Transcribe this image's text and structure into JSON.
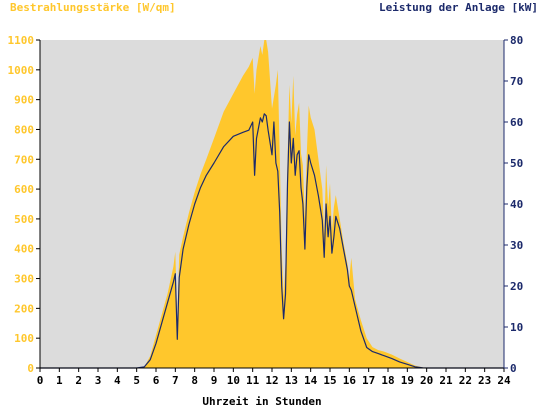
{
  "colors": {
    "plot_background": "#dcdcdc",
    "irradiance_fill": "#ffc72c",
    "power_line": "#1c2a6b",
    "left_axis_text": "#ffc72c",
    "right_axis_text": "#1c2a6b"
  },
  "chart_data": {
    "type": "area",
    "left_axis_title": "Bestrahlungsstärke [W/qm]",
    "right_axis_title": "Leistung der Anlage [kW]",
    "xlabel": "Uhrzeit in Stunden",
    "xlim": [
      0,
      24
    ],
    "ylim_left": [
      0,
      1100
    ],
    "ylim_right": [
      0,
      80
    ],
    "x_ticks": [
      "0",
      "1",
      "2",
      "3",
      "4",
      "5",
      "6",
      "7",
      "8",
      "9",
      "10",
      "11",
      "12",
      "13",
      "14",
      "15",
      "16",
      "17",
      "18",
      "19",
      "20",
      "21",
      "22",
      "23",
      "24"
    ],
    "y_ticks_left": [
      "0",
      "100",
      "200",
      "300",
      "400",
      "500",
      "600",
      "700",
      "800",
      "900",
      "1000",
      "1100"
    ],
    "y_ticks_right": [
      "0",
      "10",
      "20",
      "30",
      "40",
      "50",
      "60",
      "70",
      "80"
    ],
    "grid": false,
    "series": [
      {
        "name": "Bestrahlungsstärke",
        "axis": "left",
        "style": "area",
        "points": [
          [
            0,
            0
          ],
          [
            5.0,
            0
          ],
          [
            5.4,
            5
          ],
          [
            5.7,
            40
          ],
          [
            6.0,
            110
          ],
          [
            6.3,
            180
          ],
          [
            6.6,
            250
          ],
          [
            6.9,
            340
          ],
          [
            7.0,
            390
          ],
          [
            7.1,
            150
          ],
          [
            7.2,
            380
          ],
          [
            7.4,
            440
          ],
          [
            7.7,
            520
          ],
          [
            8.0,
            590
          ],
          [
            8.3,
            650
          ],
          [
            8.6,
            700
          ],
          [
            9.0,
            770
          ],
          [
            9.5,
            860
          ],
          [
            10.0,
            920
          ],
          [
            10.5,
            980
          ],
          [
            10.8,
            1010
          ],
          [
            11.0,
            1040
          ],
          [
            11.1,
            920
          ],
          [
            11.2,
            1000
          ],
          [
            11.4,
            1080
          ],
          [
            11.5,
            1050
          ],
          [
            11.6,
            1100
          ],
          [
            11.7,
            1100
          ],
          [
            11.8,
            1060
          ],
          [
            12.0,
            870
          ],
          [
            12.2,
            950
          ],
          [
            12.3,
            1000
          ],
          [
            12.4,
            720
          ],
          [
            12.5,
            400
          ],
          [
            12.6,
            240
          ],
          [
            12.7,
            350
          ],
          [
            12.8,
            700
          ],
          [
            12.9,
            950
          ],
          [
            13.0,
            820
          ],
          [
            13.1,
            980
          ],
          [
            13.2,
            780
          ],
          [
            13.3,
            850
          ],
          [
            13.4,
            890
          ],
          [
            13.5,
            720
          ],
          [
            13.6,
            680
          ],
          [
            13.7,
            500
          ],
          [
            13.8,
            720
          ],
          [
            13.9,
            880
          ],
          [
            14.0,
            840
          ],
          [
            14.2,
            800
          ],
          [
            14.4,
            700
          ],
          [
            14.6,
            600
          ],
          [
            14.7,
            450
          ],
          [
            14.8,
            680
          ],
          [
            14.9,
            540
          ],
          [
            15.0,
            620
          ],
          [
            15.1,
            460
          ],
          [
            15.2,
            540
          ],
          [
            15.3,
            580
          ],
          [
            15.5,
            500
          ],
          [
            15.7,
            420
          ],
          [
            15.9,
            350
          ],
          [
            16.0,
            300
          ],
          [
            16.1,
            370
          ],
          [
            16.3,
            230
          ],
          [
            16.6,
            160
          ],
          [
            16.9,
            100
          ],
          [
            17.2,
            70
          ],
          [
            17.5,
            60
          ],
          [
            17.8,
            55
          ],
          [
            18.2,
            45
          ],
          [
            18.6,
            32
          ],
          [
            19.0,
            20
          ],
          [
            19.4,
            8
          ],
          [
            19.8,
            2
          ],
          [
            20.0,
            0
          ],
          [
            24,
            0
          ]
        ]
      },
      {
        "name": "Leistung der Anlage",
        "axis": "right",
        "style": "line",
        "points": [
          [
            0,
            0
          ],
          [
            5.0,
            0
          ],
          [
            5.4,
            0.3
          ],
          [
            5.7,
            2
          ],
          [
            6.0,
            6
          ],
          [
            6.3,
            11
          ],
          [
            6.6,
            16
          ],
          [
            6.9,
            21
          ],
          [
            7.0,
            23
          ],
          [
            7.1,
            7
          ],
          [
            7.2,
            22
          ],
          [
            7.4,
            29
          ],
          [
            7.7,
            35
          ],
          [
            8.0,
            40
          ],
          [
            8.3,
            44
          ],
          [
            8.6,
            47
          ],
          [
            9.0,
            50
          ],
          [
            9.5,
            54
          ],
          [
            10.0,
            56.5
          ],
          [
            10.5,
            57.5
          ],
          [
            10.8,
            58
          ],
          [
            11.0,
            60
          ],
          [
            11.1,
            47
          ],
          [
            11.2,
            56
          ],
          [
            11.4,
            61
          ],
          [
            11.5,
            60
          ],
          [
            11.6,
            62
          ],
          [
            11.7,
            61.5
          ],
          [
            11.8,
            58
          ],
          [
            12.0,
            52
          ],
          [
            12.1,
            60
          ],
          [
            12.2,
            50
          ],
          [
            12.3,
            48
          ],
          [
            12.4,
            38
          ],
          [
            12.5,
            20
          ],
          [
            12.6,
            12
          ],
          [
            12.7,
            18
          ],
          [
            12.8,
            45
          ],
          [
            12.9,
            60
          ],
          [
            13.0,
            50
          ],
          [
            13.1,
            56
          ],
          [
            13.2,
            47
          ],
          [
            13.3,
            52
          ],
          [
            13.4,
            53
          ],
          [
            13.5,
            44
          ],
          [
            13.6,
            40
          ],
          [
            13.7,
            29
          ],
          [
            13.8,
            44
          ],
          [
            13.9,
            52
          ],
          [
            14.0,
            50
          ],
          [
            14.2,
            47
          ],
          [
            14.4,
            42
          ],
          [
            14.6,
            36
          ],
          [
            14.7,
            27
          ],
          [
            14.8,
            40
          ],
          [
            14.9,
            32
          ],
          [
            15.0,
            37
          ],
          [
            15.1,
            28
          ],
          [
            15.2,
            32
          ],
          [
            15.3,
            37
          ],
          [
            15.5,
            34
          ],
          [
            15.7,
            29
          ],
          [
            15.9,
            24
          ],
          [
            16.0,
            20
          ],
          [
            16.1,
            19
          ],
          [
            16.3,
            15
          ],
          [
            16.6,
            9
          ],
          [
            16.9,
            5
          ],
          [
            17.2,
            4
          ],
          [
            17.5,
            3.5
          ],
          [
            17.8,
            3
          ],
          [
            18.2,
            2.3
          ],
          [
            18.6,
            1.5
          ],
          [
            19.0,
            0.9
          ],
          [
            19.4,
            0.3
          ],
          [
            19.8,
            0.05
          ],
          [
            20.0,
            0
          ],
          [
            24,
            0
          ]
        ]
      }
    ]
  }
}
